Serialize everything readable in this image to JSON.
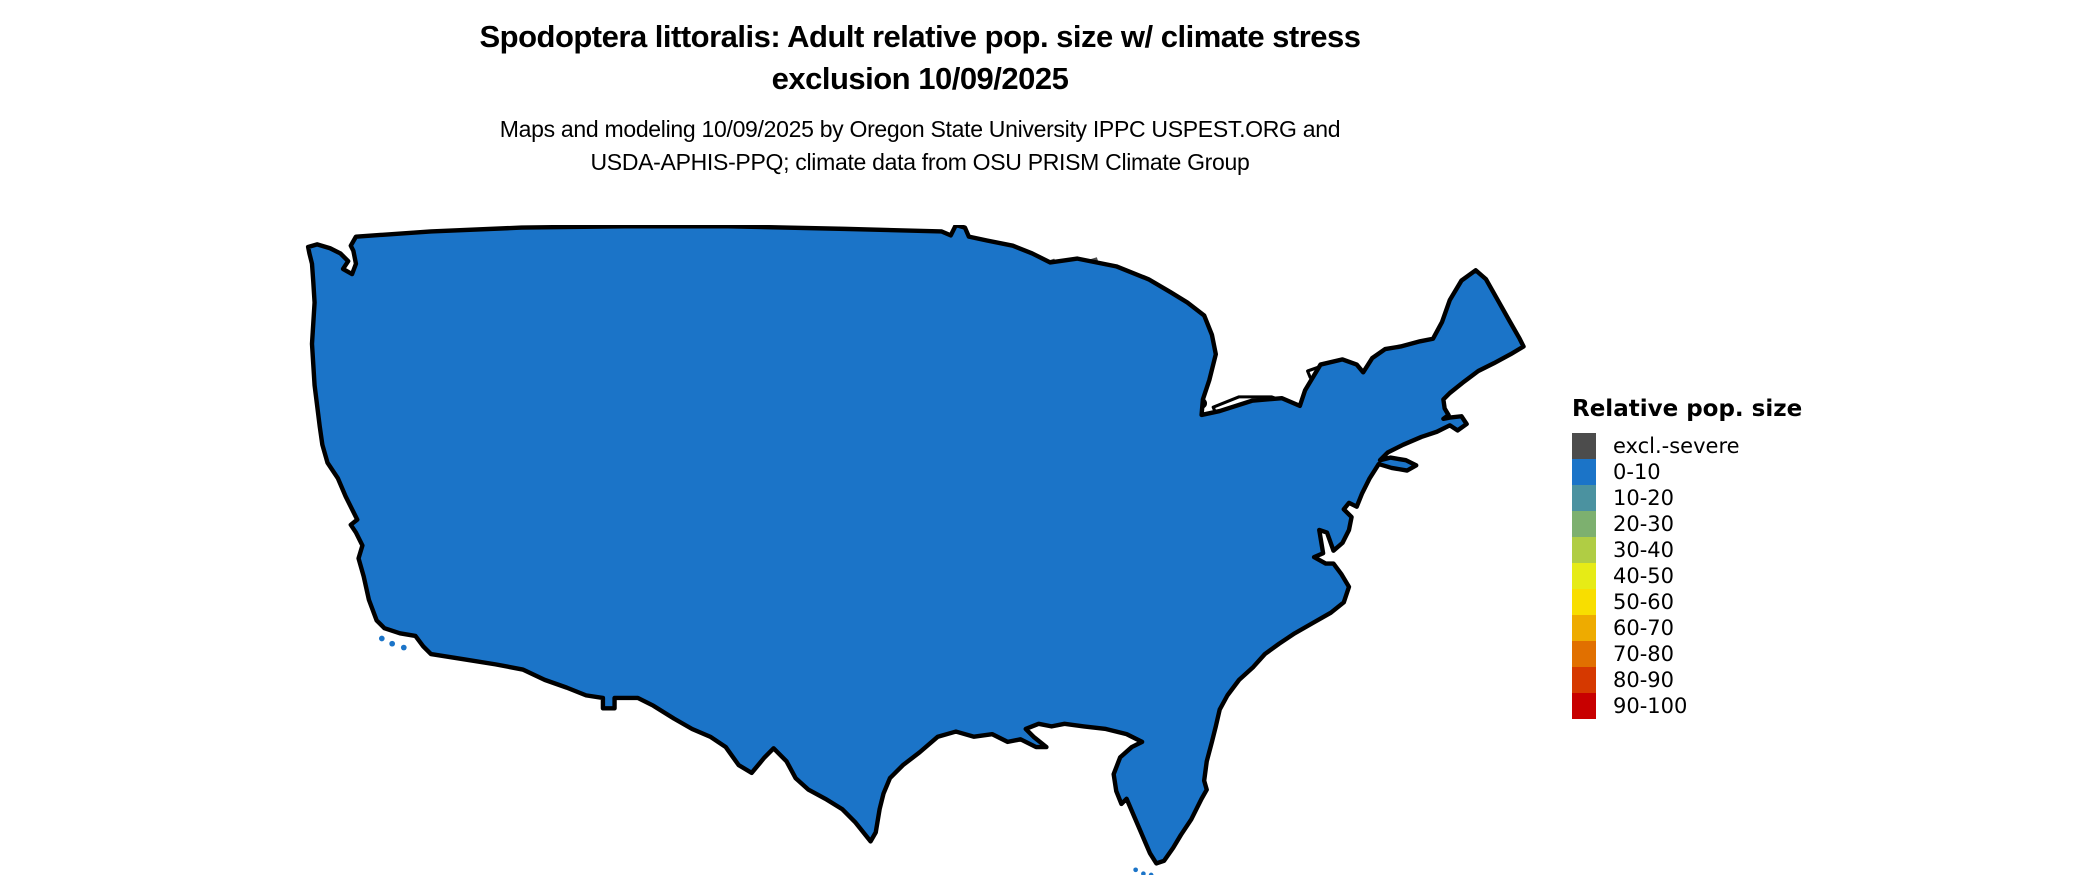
{
  "header": {
    "title_line1": "Spodoptera littoralis: Adult relative pop. size w/ climate stress",
    "title_line2": "exclusion 10/09/2025",
    "subtitle_line1": "Maps and modeling 10/09/2025 by Oregon State University IPPC USPEST.ORG and",
    "subtitle_line2": "USDA-APHIS-PPQ; climate data from OSU PRISM Climate Group"
  },
  "legend": {
    "title": "Relative pop. size",
    "entries": [
      {
        "label": "excl.-severe",
        "color": "#4c4c4c"
      },
      {
        "label": "0-10",
        "color": "#1b74c8"
      },
      {
        "label": "10-20",
        "color": "#4b92a0"
      },
      {
        "label": "20-30",
        "color": "#7db06f"
      },
      {
        "label": "30-40",
        "color": "#b0cd44"
      },
      {
        "label": "40-50",
        "color": "#e6eb16"
      },
      {
        "label": "50-60",
        "color": "#f8de00"
      },
      {
        "label": "60-70",
        "color": "#eeab00"
      },
      {
        "label": "70-80",
        "color": "#e17000"
      },
      {
        "label": "80-90",
        "color": "#d63900"
      },
      {
        "label": "90-100",
        "color": "#c80000"
      }
    ]
  },
  "map": {
    "colors": {
      "base": "#1b74c8",
      "exclusion": "#4c4c4c",
      "border": "#000000",
      "water": "#ffffff",
      "speckle_green": "#8fbc66",
      "speckle_teal": "#4b92a0",
      "speckle_yellow": "#b0cd44"
    }
  }
}
